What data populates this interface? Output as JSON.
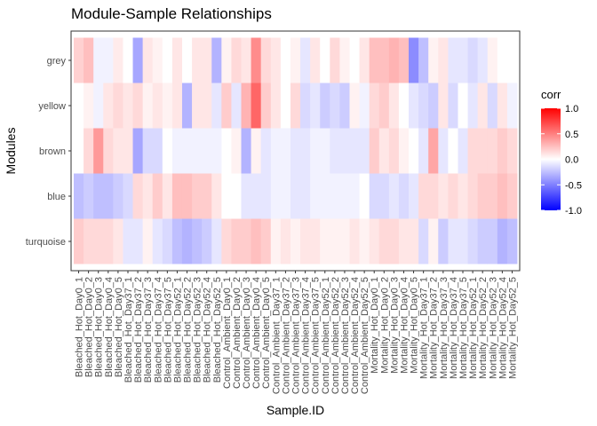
{
  "chart_data": {
    "type": "heatmap",
    "title": "Module-Sample Relationships",
    "xlabel": "Sample.ID",
    "ylabel": "Modules",
    "x": [
      "Bleached_Hot_Day0_1",
      "Bleached_Hot_Day0_2",
      "Bleached_Hot_Day0_3",
      "Bleached_Hot_Day0_4",
      "Bleached_Hot_Day0_5",
      "Bleached_Hot_Day37_1",
      "Bleached_Hot_Day37_2",
      "Bleached_Hot_Day37_3",
      "Bleached_Hot_Day37_4",
      "Bleached_Hot_Day37_5",
      "Bleached_Hot_Day52_1",
      "Bleached_Hot_Day52_2",
      "Bleached_Hot_Day52_3",
      "Bleached_Hot_Day52_4",
      "Bleached_Hot_Day52_5",
      "Control_Ambient_Day0_1",
      "Control_Ambient_Day0_2",
      "Control_Ambient_Day0_3",
      "Control_Ambient_Day0_4",
      "Control_Ambient_Day0_5",
      "Control_Ambient_Day37_1",
      "Control_Ambient_Day37_2",
      "Control_Ambient_Day37_3",
      "Control_Ambient_Day37_4",
      "Control_Ambient_Day37_5",
      "Control_Ambient_Day52_1",
      "Control_Ambient_Day52_2",
      "Control_Ambient_Day52_3",
      "Control_Ambient_Day52_4",
      "Control_Ambient_Day52_5",
      "Mortality_Hot_Day0_1",
      "Mortality_Hot_Day0_2",
      "Mortality_Hot_Day0_3",
      "Mortality_Hot_Day0_4",
      "Mortality_Hot_Day0_5",
      "Mortality_Hot_Day37_1",
      "Mortality_Hot_Day37_2",
      "Mortality_Hot_Day37_3",
      "Mortality_Hot_Day37_4",
      "Mortality_Hot_Day37_5",
      "Mortality_Hot_Day52_1",
      "Mortality_Hot_Day52_2",
      "Mortality_Hot_Day52_3",
      "Mortality_Hot_Day52_4",
      "Mortality_Hot_Day52_5"
    ],
    "y": [
      "grey",
      "yellow",
      "brown",
      "blue",
      "turquoise"
    ],
    "values": {
      "grey": [
        0.18,
        0.25,
        -0.05,
        -0.05,
        0.08,
        0.0,
        -0.35,
        0.1,
        0.05,
        0.0,
        0.1,
        0.0,
        0.1,
        0.1,
        -0.3,
        0.05,
        0.15,
        0.1,
        0.45,
        0.15,
        0.1,
        0.0,
        0.05,
        -0.1,
        0.1,
        0.0,
        0.15,
        0.05,
        0.0,
        0.1,
        0.25,
        0.25,
        0.3,
        0.25,
        -0.45,
        -0.25,
        0.05,
        0.1,
        -0.1,
        -0.1,
        -0.15,
        -0.1,
        0.05,
        0.0,
        0.0
      ],
      "yellow": [
        0.0,
        0.05,
        -0.05,
        0.1,
        0.15,
        0.1,
        0.15,
        0.05,
        0.1,
        0.05,
        0.1,
        -0.3,
        0.1,
        0.1,
        -0.1,
        0.2,
        -0.1,
        0.3,
        0.6,
        0.2,
        0.1,
        0.0,
        0.15,
        -0.15,
        -0.1,
        -0.2,
        -0.15,
        -0.2,
        0.05,
        -0.05,
        0.15,
        0.2,
        0.1,
        0.0,
        -0.1,
        -0.15,
        -0.2,
        0.1,
        -0.15,
        0.0,
        -0.1,
        0.1,
        -0.15,
        0.1,
        -0.05
      ],
      "brown": [
        0.0,
        0.15,
        0.4,
        0.15,
        0.1,
        0.1,
        -0.35,
        -0.15,
        -0.15,
        0.0,
        -0.05,
        -0.05,
        -0.05,
        -0.05,
        -0.05,
        0.0,
        0.05,
        -0.3,
        0.05,
        -0.1,
        -0.05,
        -0.05,
        -0.1,
        -0.1,
        -0.05,
        -0.05,
        -0.1,
        -0.1,
        -0.1,
        -0.1,
        0.2,
        0.1,
        0.15,
        0.05,
        0.0,
        -0.1,
        0.35,
        -0.1,
        0.0,
        -0.1,
        0.15,
        0.15,
        0.15,
        0.2,
        0.15
      ],
      "blue": [
        -0.25,
        -0.2,
        -0.25,
        -0.25,
        -0.2,
        -0.15,
        0.15,
        0.1,
        0.2,
        0.1,
        0.25,
        0.25,
        0.2,
        0.2,
        0.1,
        0.0,
        0.0,
        -0.1,
        -0.1,
        -0.1,
        -0.05,
        -0.05,
        -0.1,
        -0.1,
        -0.05,
        -0.05,
        -0.05,
        -0.05,
        -0.05,
        0.0,
        -0.15,
        -0.15,
        -0.1,
        -0.15,
        -0.1,
        0.15,
        0.15,
        0.1,
        0.15,
        0.1,
        0.15,
        0.2,
        0.2,
        0.25,
        0.2
      ],
      "turquoise": [
        0.2,
        0.15,
        0.15,
        0.15,
        0.1,
        -0.1,
        -0.1,
        0.05,
        -0.1,
        -0.15,
        -0.25,
        -0.3,
        -0.25,
        -0.2,
        -0.1,
        0.15,
        0.2,
        0.2,
        0.25,
        0.2,
        0.05,
        0.1,
        0.05,
        0.1,
        0.1,
        0.05,
        0.05,
        0.05,
        0.1,
        0.05,
        0.1,
        0.15,
        0.15,
        0.1,
        0.1,
        -0.15,
        0.05,
        -0.2,
        -0.1,
        -0.1,
        -0.15,
        -0.2,
        -0.2,
        -0.3,
        -0.25
      ]
    },
    "legend": {
      "title": "corr",
      "ticks": [
        "1.0",
        "0.5",
        "0.0",
        "-0.5",
        "-1.0"
      ],
      "tick_values": [
        1.0,
        0.5,
        0.0,
        -0.5,
        -1.0
      ],
      "placement": "right"
    },
    "color_scale": {
      "low": "#0000ff",
      "mid": "#ffffff",
      "high": "#ff0000",
      "limits": [
        -1,
        1
      ]
    },
    "panel_border": true
  }
}
